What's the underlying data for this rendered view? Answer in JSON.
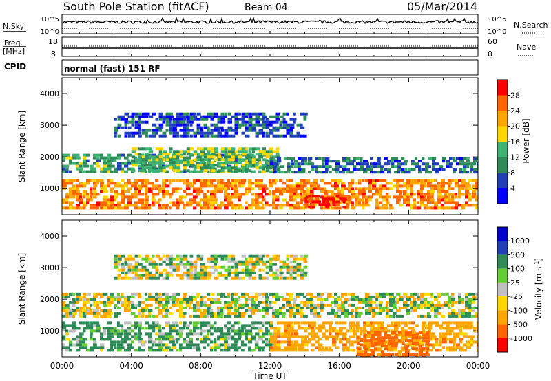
{
  "header": {
    "station": "South Pole Station (fitACF)",
    "beam": "Beam 04",
    "date": "05/Mar/2014"
  },
  "noise_panel": {
    "left_label": "N.Sky",
    "right_label": "N.Search",
    "left_ticks": [
      "10^5",
      "10^0"
    ],
    "right_ticks": [
      "10^5",
      "10^0"
    ]
  },
  "freq_panel": {
    "left_label_1": "Freq.",
    "left_label_2": "[MHz]",
    "right_label": "Nave",
    "left_ticks": [
      "18",
      "8"
    ],
    "right_ticks": [
      "60",
      "0"
    ]
  },
  "cpid": {
    "label": "CPID",
    "mode": "normal (fast) 151 RF"
  },
  "x_axis": {
    "label": "Time UT",
    "ticks": [
      "00:00",
      "04:00",
      "08:00",
      "12:00",
      "16:00",
      "20:00",
      "00:00"
    ]
  },
  "colors": {
    "power": [
      "#0000ff",
      "#1f3fb8",
      "#2e8b57",
      "#3cb371",
      "#ffd700",
      "#ffa500",
      "#ff6600",
      "#ff0000"
    ],
    "velocity": [
      "#ff0000",
      "#ff6600",
      "#ffa500",
      "#ffd700",
      "#c0c0c0",
      "#66cc33",
      "#2e8b57",
      "#1f3fb8",
      "#0000cc"
    ]
  },
  "chart_data": [
    {
      "type": "heatmap",
      "ylabel": "Slant Range [km]",
      "xlabel": "",
      "xlim": [
        0,
        24
      ],
      "ylim": [
        180,
        4500
      ],
      "y_ticks": [
        "1000",
        "2000",
        "3000",
        "4000"
      ],
      "colorbar": {
        "label": "Power [dB]",
        "ticks": [
          "4",
          "8",
          "12",
          "16",
          "20",
          "24",
          "28"
        ],
        "range": [
          0,
          32
        ]
      },
      "bands": [
        {
          "t0": 0.0,
          "t1": 24.0,
          "r0": 400,
          "r1": 1300,
          "level": 24
        },
        {
          "t0": 0.0,
          "t1": 12.5,
          "r0": 1500,
          "r1": 2100,
          "level": 12
        },
        {
          "t0": 4.0,
          "t1": 12.5,
          "r0": 1600,
          "r1": 2300,
          "level": 14
        },
        {
          "t0": 12.0,
          "t1": 24.0,
          "r0": 1500,
          "r1": 2000,
          "level": 8
        },
        {
          "t0": 14.0,
          "t1": 16.5,
          "r0": 400,
          "r1": 800,
          "level": 30
        },
        {
          "t0": 3.0,
          "t1": 14.0,
          "r0": 2700,
          "r1": 3400,
          "level": 6
        }
      ]
    },
    {
      "type": "heatmap",
      "ylabel": "Slant Range [km]",
      "xlabel": "Time UT",
      "xlim": [
        0,
        24
      ],
      "ylim": [
        180,
        4500
      ],
      "y_ticks": [
        "1000",
        "2000",
        "3000",
        "4000"
      ],
      "colorbar": {
        "label": "Velocity [m s^-1]",
        "ticks": [
          "1000",
          "500",
          "100",
          "25",
          "-25",
          "-100",
          "-500",
          "-1000"
        ],
        "range": [
          -1200,
          1200
        ]
      },
      "bands": [
        {
          "t0": 0.0,
          "t1": 24.0,
          "r0": 1500,
          "r1": 2200,
          "level": 0
        },
        {
          "t0": 0.0,
          "t1": 12.0,
          "r0": 400,
          "r1": 1300,
          "level": 200
        },
        {
          "t0": 12.0,
          "t1": 24.0,
          "r0": 400,
          "r1": 1300,
          "level": -300
        },
        {
          "t0": 17.0,
          "t1": 21.0,
          "r0": 200,
          "r1": 1000,
          "level": -700
        },
        {
          "t0": 3.0,
          "t1": 14.0,
          "r0": 2700,
          "r1": 3400,
          "level": 0
        }
      ]
    }
  ]
}
